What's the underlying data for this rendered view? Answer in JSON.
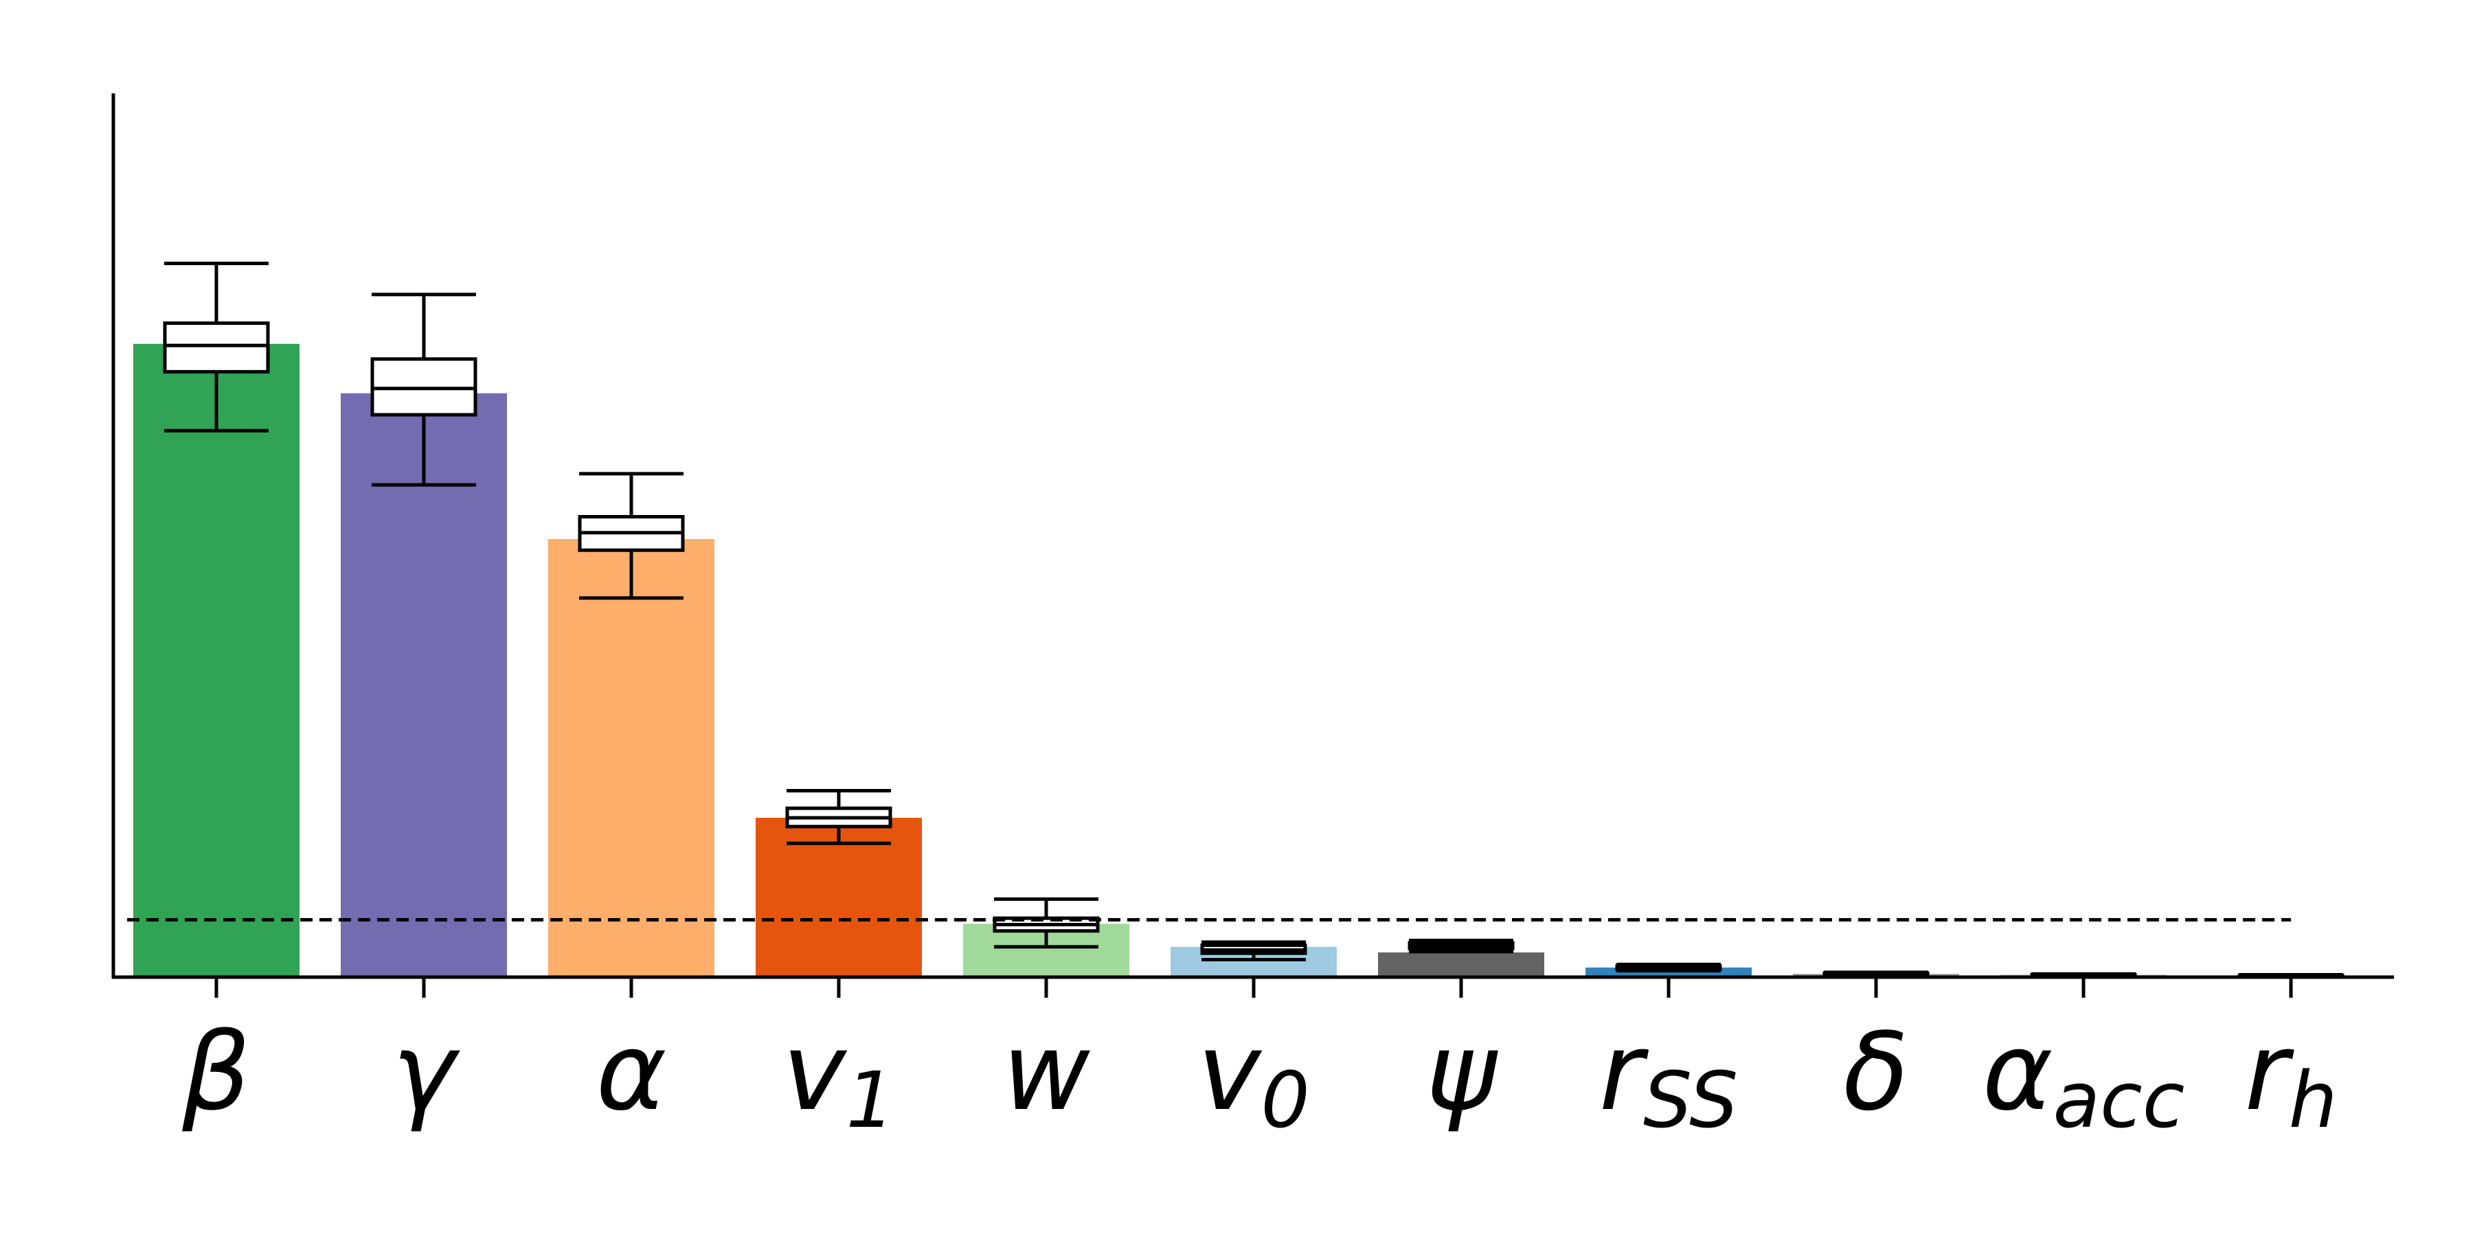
{
  "chart_data": {
    "type": "bar",
    "title": "",
    "xlabel": "",
    "ylabel": "",
    "ylim": [
      0,
      1.0
    ],
    "grid": false,
    "y_ticks_shown": false,
    "categories": [
      {
        "base": "β",
        "sub": ""
      },
      {
        "base": "γ",
        "sub": ""
      },
      {
        "base": "α",
        "sub": ""
      },
      {
        "base": "v",
        "sub": "1"
      },
      {
        "base": "w",
        "sub": ""
      },
      {
        "base": "v",
        "sub": "0"
      },
      {
        "base": "ψ",
        "sub": ""
      },
      {
        "base": "r",
        "sub": "SS"
      },
      {
        "base": "δ",
        "sub": ""
      },
      {
        "base": "α",
        "sub": "acc"
      },
      {
        "base": "r",
        "sub": "h"
      }
    ],
    "values": [
      0.795,
      0.733,
      0.55,
      0.2,
      0.067,
      0.038,
      0.031,
      0.012,
      0.004,
      0.003,
      0.002
    ],
    "colors": [
      "#31a354",
      "#756bb1",
      "#fdae6b",
      "#e6550d",
      "#a1d99b",
      "#9ecae1",
      "#636363",
      "#3182bd",
      "#969696",
      "#bdbdbd",
      "#d9d9d9"
    ],
    "boxplots": [
      {
        "whisker_low": 0.686,
        "q1": 0.76,
        "median": 0.793,
        "q3": 0.821,
        "whisker_high": 0.896
      },
      {
        "whisker_low": 0.618,
        "q1": 0.706,
        "median": 0.739,
        "q3": 0.776,
        "whisker_high": 0.857
      },
      {
        "whisker_low": 0.476,
        "q1": 0.536,
        "median": 0.558,
        "q3": 0.578,
        "whisker_high": 0.632
      },
      {
        "whisker_low": 0.168,
        "q1": 0.189,
        "median": 0.2,
        "q3": 0.212,
        "whisker_high": 0.234
      },
      {
        "whisker_low": 0.038,
        "q1": 0.058,
        "median": 0.066,
        "q3": 0.074,
        "whisker_high": 0.098
      },
      {
        "whisker_low": 0.022,
        "q1": 0.03,
        "median": 0.034,
        "q3": 0.04,
        "whisker_high": 0.044
      },
      {
        "whisker_low": 0.032,
        "q1": 0.036,
        "median": 0.039,
        "q3": 0.043,
        "whisker_high": 0.046
      },
      {
        "whisker_low": 0.008,
        "q1": 0.01,
        "median": 0.012,
        "q3": 0.014,
        "whisker_high": 0.016
      },
      {
        "whisker_low": 0.002,
        "q1": 0.003,
        "median": 0.004,
        "q3": 0.005,
        "whisker_high": 0.006
      },
      {
        "whisker_low": 0.001,
        "q1": 0.002,
        "median": 0.003,
        "q3": 0.003,
        "whisker_high": 0.004
      },
      {
        "whisker_low": 0.001,
        "q1": 0.001,
        "median": 0.002,
        "q3": 0.002,
        "whisker_high": 0.003
      }
    ],
    "reference_line": {
      "value": 0.072,
      "style": "dashed",
      "color": "#000000"
    }
  }
}
